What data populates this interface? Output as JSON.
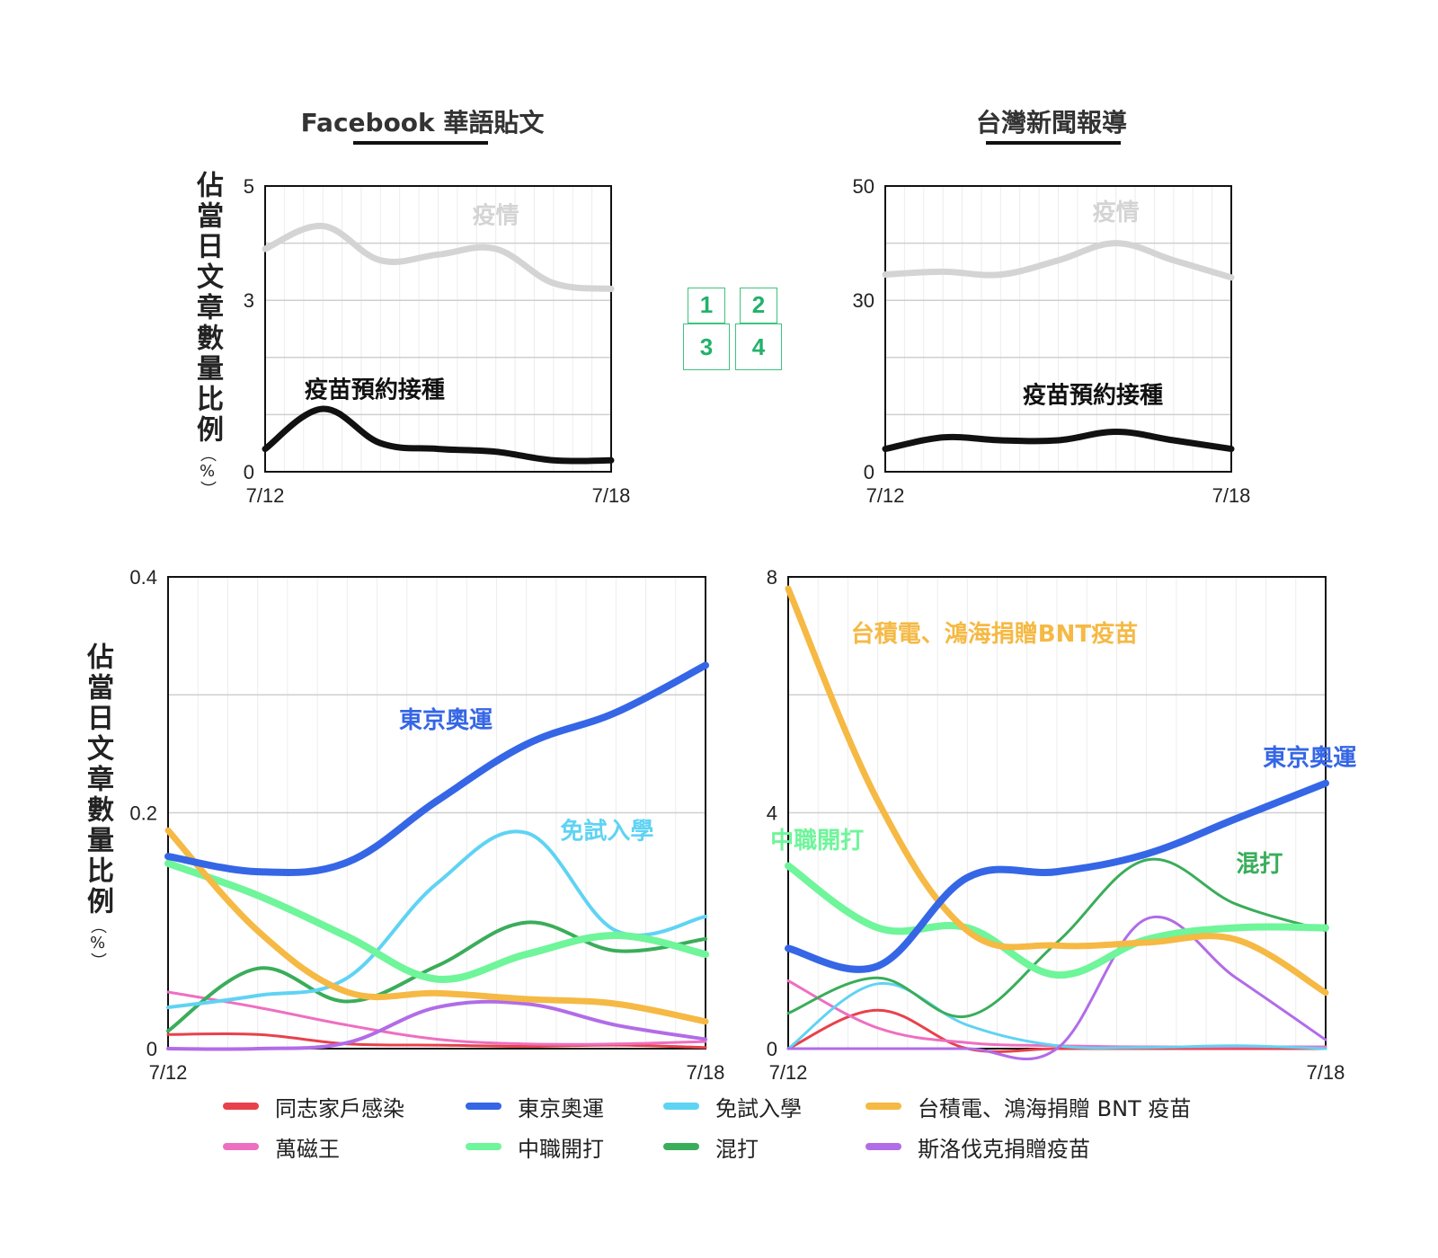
{
  "headers": {
    "left": "Facebook 華語貼文",
    "right": "台灣新聞報導"
  },
  "y_axis_label": {
    "text": "佔當日文章數量比例",
    "unit": "（%）"
  },
  "layout_icon": {
    "name": "panel-grid-icon",
    "labels": [
      "1",
      "2",
      "3",
      "4"
    ],
    "color": "#22b26a"
  },
  "colors": {
    "grey": "#d4d4d4",
    "black": "#111111",
    "red": "#e8414b",
    "pink": "#ee6fc1",
    "blue": "#3566e6",
    "lightblue": "#5fd3f3",
    "green": "#6ff59a",
    "darkgreen": "#3aad5a",
    "orange": "#f5b944",
    "purple": "#b16ce8"
  },
  "chart_data": [
    {
      "id": "fb-top",
      "type": "line",
      "title": "",
      "x": [
        "7/12",
        "7/13",
        "7/14",
        "7/15",
        "7/16",
        "7/17",
        "7/18"
      ],
      "x_tick_labels": [
        "7/12",
        "7/18"
      ],
      "y_ticks": [
        "0",
        "3",
        "5"
      ],
      "ylim": [
        0,
        5
      ],
      "grid": true,
      "series": [
        {
          "name": "疫情",
          "color": "#d4d4d4",
          "width": 7,
          "label_x": 4.0,
          "label_y": 4.35,
          "label_anchor": "middle",
          "values": [
            3.9,
            4.3,
            3.7,
            3.8,
            3.9,
            3.3,
            3.2
          ]
        },
        {
          "name": "疫苗預約接種",
          "color": "#111111",
          "width": 7,
          "label_x": 1.9,
          "label_y": 1.3,
          "label_anchor": "middle",
          "values": [
            0.4,
            1.1,
            0.5,
            0.4,
            0.35,
            0.2,
            0.2
          ]
        }
      ]
    },
    {
      "id": "news-top",
      "type": "line",
      "title": "",
      "x": [
        "7/12",
        "7/13",
        "7/14",
        "7/15",
        "7/16",
        "7/17",
        "7/18"
      ],
      "x_tick_labels": [
        "7/12",
        "7/18"
      ],
      "y_ticks": [
        "0",
        "30",
        "50"
      ],
      "ylim": [
        0,
        50
      ],
      "grid": true,
      "series": [
        {
          "name": "疫情",
          "color": "#d4d4d4",
          "width": 7,
          "label_x": 4.0,
          "label_y": 44,
          "label_anchor": "middle",
          "values": [
            34.5,
            35,
            34.5,
            37,
            40,
            37,
            34
          ]
        },
        {
          "name": "疫苗預約接種",
          "color": "#111111",
          "width": 7,
          "label_x": 3.6,
          "label_y": 12,
          "label_anchor": "middle",
          "values": [
            4,
            6,
            5.5,
            5.5,
            7,
            5.5,
            4
          ]
        }
      ]
    },
    {
      "id": "fb-bottom",
      "type": "line",
      "title": "",
      "x": [
        "7/12",
        "7/13",
        "7/14",
        "7/15",
        "7/16",
        "7/17",
        "7/18"
      ],
      "x_tick_labels": [
        "7/12",
        "7/18"
      ],
      "y_ticks": [
        "0",
        "0.2",
        "0.4"
      ],
      "ylim": [
        0,
        0.4
      ],
      "grid": true,
      "series": [
        {
          "name": "同志家戶感染",
          "color": "#e8414b",
          "width": 3,
          "values": [
            0.012,
            0.012,
            0.004,
            0.003,
            0.002,
            0.003,
            0.001
          ]
        },
        {
          "name": "萬磁王",
          "color": "#ee6fc1",
          "width": 3,
          "values": [
            0.048,
            0.035,
            0.02,
            0.008,
            0.004,
            0.004,
            0.006
          ]
        },
        {
          "name": "斯洛伐克捐贈疫苗",
          "color": "#b16ce8",
          "width": 4,
          "values": [
            0.0,
            0.0,
            0.005,
            0.035,
            0.038,
            0.02,
            0.008
          ]
        },
        {
          "name": "混打",
          "color": "#3aad5a",
          "width": 4,
          "values": [
            0.015,
            0.068,
            0.04,
            0.07,
            0.107,
            0.083,
            0.093
          ]
        },
        {
          "name": "免試入學",
          "color": "#5fd3f3",
          "width": 4,
          "label": "免試入學",
          "label_x": 4.9,
          "label_y": 0.178,
          "label_anchor": "middle",
          "values": [
            0.035,
            0.045,
            0.06,
            0.14,
            0.183,
            0.1,
            0.112
          ]
        },
        {
          "name": "中職開打",
          "color": "#6ff59a",
          "width": 8,
          "values": [
            0.157,
            0.13,
            0.095,
            0.059,
            0.08,
            0.096,
            0.08
          ]
        },
        {
          "name": "台積電、鴻海捐贈BNT疫苗",
          "color": "#f5b944",
          "width": 7,
          "values": [
            0.185,
            0.1,
            0.048,
            0.047,
            0.042,
            0.038,
            0.023
          ]
        },
        {
          "name": "東京奧運",
          "color": "#3566e6",
          "width": 8,
          "label": "東京奧運",
          "label_x": 3.1,
          "label_y": 0.272,
          "label_anchor": "middle",
          "values": [
            0.163,
            0.15,
            0.158,
            0.21,
            0.258,
            0.285,
            0.325
          ]
        }
      ]
    },
    {
      "id": "news-bottom",
      "type": "line",
      "title": "",
      "x": [
        "7/12",
        "7/13",
        "7/14",
        "7/15",
        "7/16",
        "7/17",
        "7/18"
      ],
      "x_tick_labels": [
        "7/12",
        "7/18"
      ],
      "y_ticks": [
        "0",
        "4",
        "8"
      ],
      "ylim": [
        0,
        8
      ],
      "grid": true,
      "series": [
        {
          "name": "同志家戶感染",
          "color": "#e8414b",
          "width": 3,
          "values": [
            0.0,
            0.65,
            0.0,
            0.0,
            0.0,
            0.0,
            0.0
          ]
        },
        {
          "name": "萬磁王",
          "color": "#ee6fc1",
          "width": 3,
          "values": [
            1.15,
            0.35,
            0.1,
            0.05,
            0.03,
            0.03,
            0.03
          ]
        },
        {
          "name": "免試入學",
          "color": "#5fd3f3",
          "width": 3,
          "values": [
            0.0,
            1.1,
            0.4,
            0.05,
            0.02,
            0.05,
            0.0
          ]
        },
        {
          "name": "斯洛伐克捐贈疫苗",
          "color": "#b16ce8",
          "width": 3,
          "values": [
            0.0,
            0.0,
            0.0,
            0.0,
            2.2,
            1.2,
            0.15
          ]
        },
        {
          "name": "混打",
          "color": "#3aad5a",
          "width": 3,
          "label": "混打",
          "label_x": 5.0,
          "label_y": 3.0,
          "label_anchor": "start",
          "values": [
            0.6,
            1.2,
            0.55,
            1.8,
            3.2,
            2.45,
            2.0
          ]
        },
        {
          "name": "中職開打",
          "color": "#6ff59a",
          "width": 8,
          "label": "中職開打",
          "label_x": -0.2,
          "label_y": 3.4,
          "label_anchor": "start",
          "values": [
            3.1,
            2.05,
            2.05,
            1.25,
            1.85,
            2.05,
            2.05
          ]
        },
        {
          "name": "台積電、鴻海捐贈BNT疫苗",
          "color": "#f5b944",
          "width": 7,
          "label": "台積電、鴻海捐贈BNT疫苗",
          "label_x": 0.7,
          "label_y": 6.9,
          "label_anchor": "start",
          "values": [
            7.8,
            4.2,
            2.0,
            1.75,
            1.8,
            1.85,
            0.95
          ]
        },
        {
          "name": "東京奧運",
          "color": "#3566e6",
          "width": 8,
          "label": "東京奧運",
          "label_x": 5.3,
          "label_y": 4.8,
          "label_anchor": "start",
          "values": [
            1.7,
            1.4,
            2.9,
            3.0,
            3.3,
            3.9,
            4.5
          ]
        }
      ]
    }
  ],
  "legend": [
    {
      "label": "同志家戶感染",
      "color": "#e8414b"
    },
    {
      "label": "東京奧運",
      "color": "#3566e6"
    },
    {
      "label": "免試入學",
      "color": "#5fd3f3"
    },
    {
      "label": "台積電、鴻海捐贈 BNT 疫苗",
      "color": "#f5b944"
    },
    {
      "label": "萬磁王",
      "color": "#ee6fc1"
    },
    {
      "label": "中職開打",
      "color": "#6ff59a"
    },
    {
      "label": "混打",
      "color": "#3aad5a"
    },
    {
      "label": "斯洛伐克捐贈疫苗",
      "color": "#b16ce8"
    }
  ]
}
